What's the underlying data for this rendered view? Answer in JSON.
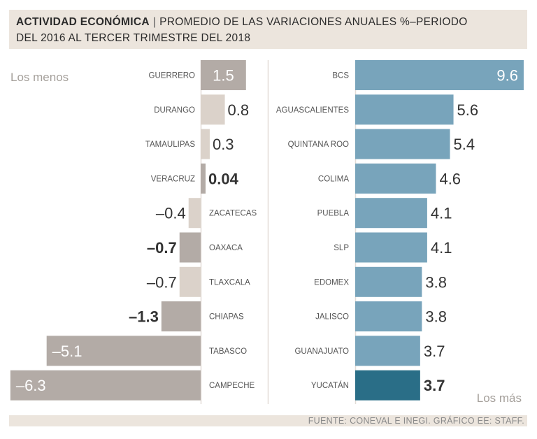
{
  "header": {
    "title_strong": "ACTIVIDAD ECONÓMICA",
    "separator": "|",
    "title_rest": "PROMEDIO DE LAS VARIACIONES ANUALES %–PERIODO",
    "subtitle": "DEL 2016 AL TERCER TRIMESTRE DEL 2018"
  },
  "footer": {
    "source": "FUENTE: CONEVAL E INEGI. GRÁFICO EE: STAFF."
  },
  "colors": {
    "left_dark": "#b3aba6",
    "left_light": "#dbd2ca",
    "right_bar": "#78a4bb",
    "right_highlight": "#2a6e87",
    "axis_line": "#e3ddd7",
    "label_text": "#555555",
    "value_text": "#333333"
  },
  "chart_data": [
    {
      "type": "bar",
      "title": "Los menos",
      "categories": [
        "GUERRERO",
        "DURANGO",
        "TAMAULIPAS",
        "VERACRUZ",
        "ZACATECAS",
        "OAXACA",
        "TLAXCALA",
        "CHIAPAS",
        "TABASCO",
        "CAMPECHE"
      ],
      "values": [
        1.5,
        0.8,
        0.3,
        0.04,
        -0.4,
        -0.7,
        -0.7,
        -1.3,
        -5.1,
        -6.3
      ],
      "value_labels": [
        "1.5",
        "0.8",
        "0.3",
        "0.04",
        "–0.4",
        "–0.7",
        "–0.7",
        "–1.3",
        "–5.1",
        "–6.3"
      ],
      "shade": [
        "dark",
        "light",
        "light",
        "dark",
        "light",
        "dark",
        "light",
        "dark",
        "dark",
        "dark"
      ],
      "bold": [
        false,
        false,
        false,
        true,
        false,
        true,
        false,
        true,
        false,
        false
      ]
    },
    {
      "type": "bar",
      "title": "Los más",
      "categories": [
        "BCS",
        "AGUASCALIENTES",
        "QUINTANA ROO",
        "COLIMA",
        "PUEBLA",
        "SLP",
        "EDOMEX",
        "JALISCO",
        "GUANAJUATO",
        "YUCATÁN"
      ],
      "values": [
        9.6,
        5.6,
        5.4,
        4.6,
        4.1,
        4.1,
        3.8,
        3.8,
        3.7,
        3.7
      ],
      "value_labels": [
        "9.6",
        "5.6",
        "5.4",
        "4.6",
        "4.1",
        "4.1",
        "3.8",
        "3.8",
        "3.7",
        "3.7"
      ],
      "highlight": [
        false,
        false,
        false,
        false,
        false,
        false,
        false,
        false,
        false,
        true
      ],
      "bold": [
        false,
        false,
        false,
        false,
        false,
        false,
        false,
        false,
        false,
        true
      ]
    }
  ]
}
